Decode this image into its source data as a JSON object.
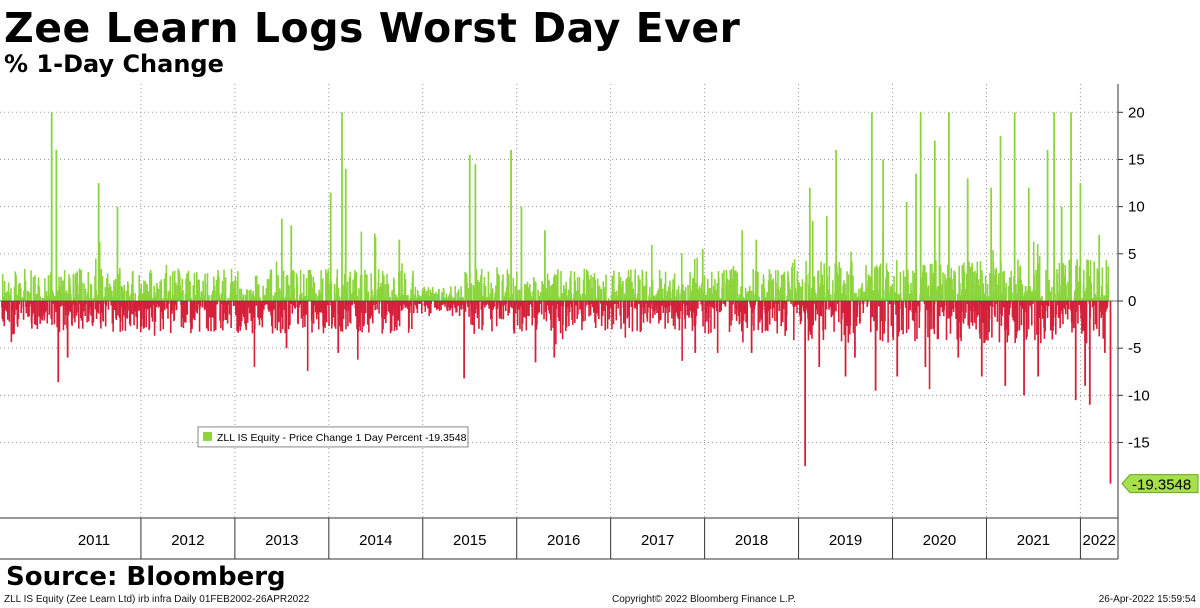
{
  "title": "Zee Learn Logs Worst Day Ever",
  "subtitle": "% 1-Day Change",
  "source": "Source: Bloomberg",
  "footer": {
    "left": "ZLL IS Equity (Zee Learn Ltd) irb infra  Daily 01FEB2002-26APR2022",
    "center": "Copyright© 2022 Bloomberg Finance L.P.",
    "right": "26-Apr-2022 15:59:54"
  },
  "colors": {
    "up": "#8cd43c",
    "down": "#d5203a",
    "label_bg": "#a7e04a"
  },
  "chart_data": {
    "type": "bar",
    "series_name": "ZLL IS Equity - Price Change 1 Day Percent",
    "legend_text": "ZLL IS Equity - Price Change 1 Day Percent -19.3548",
    "last_value": -19.3548,
    "last_value_label": "-19.3548",
    "ylim": [
      -23,
      23
    ],
    "yticks": [
      20,
      15,
      10,
      5,
      0,
      -5,
      -10,
      -15
    ],
    "ytick_labels": [
      "20",
      "15",
      "10",
      "5",
      "0",
      "-5",
      "-10",
      "-15"
    ],
    "x_range": [
      2010.5,
      2022.4
    ],
    "years": [
      2011,
      2012,
      2013,
      2014,
      2015,
      2016,
      2017,
      2018,
      2019,
      2020,
      2021,
      2022
    ],
    "year_labels": [
      "2011",
      "2012",
      "2013",
      "2014",
      "2015",
      "2016",
      "2017",
      "2018",
      "2019",
      "2020",
      "2021",
      "2022"
    ],
    "notable_moves": [
      {
        "t": 2011.05,
        "v": 20
      },
      {
        "t": 2011.1,
        "v": 16
      },
      {
        "t": 2011.12,
        "v": -8.6
      },
      {
        "t": 2011.55,
        "v": 12.5
      },
      {
        "t": 2011.75,
        "v": 10
      },
      {
        "t": 2011.22,
        "v": -6
      },
      {
        "t": 2013.5,
        "v": 8.7
      },
      {
        "t": 2013.6,
        "v": 8
      },
      {
        "t": 2013.55,
        "v": -5
      },
      {
        "t": 2014.02,
        "v": 11.5
      },
      {
        "t": 2014.14,
        "v": 20
      },
      {
        "t": 2014.18,
        "v": 14
      },
      {
        "t": 2014.1,
        "v": -5.5
      },
      {
        "t": 2014.75,
        "v": 6.5
      },
      {
        "t": 2015.44,
        "v": -8.2
      },
      {
        "t": 2015.5,
        "v": 15.5
      },
      {
        "t": 2015.56,
        "v": 14.5
      },
      {
        "t": 2015.94,
        "v": 16
      },
      {
        "t": 2016.05,
        "v": 10
      },
      {
        "t": 2016.2,
        "v": -6.5
      },
      {
        "t": 2016.3,
        "v": 7.5
      },
      {
        "t": 2016.4,
        "v": -6
      },
      {
        "t": 2017.9,
        "v": -5.5
      },
      {
        "t": 2017.98,
        "v": 5.5
      },
      {
        "t": 2018.4,
        "v": 7.5
      },
      {
        "t": 2018.5,
        "v": -5.5
      },
      {
        "t": 2018.55,
        "v": 6.5
      },
      {
        "t": 2019.07,
        "v": -17.5
      },
      {
        "t": 2019.12,
        "v": 12
      },
      {
        "t": 2019.22,
        "v": -7
      },
      {
        "t": 2019.3,
        "v": 9
      },
      {
        "t": 2019.4,
        "v": 16
      },
      {
        "t": 2019.5,
        "v": -8
      },
      {
        "t": 2019.6,
        "v": -6
      },
      {
        "t": 2019.78,
        "v": 20
      },
      {
        "t": 2019.82,
        "v": -9.5
      },
      {
        "t": 2019.9,
        "v": 15
      },
      {
        "t": 2020.05,
        "v": -8
      },
      {
        "t": 2020.15,
        "v": 10.5
      },
      {
        "t": 2020.25,
        "v": 13.5
      },
      {
        "t": 2020.3,
        "v": 20
      },
      {
        "t": 2020.35,
        "v": -7
      },
      {
        "t": 2020.45,
        "v": 17
      },
      {
        "t": 2020.5,
        "v": 10
      },
      {
        "t": 2020.6,
        "v": 20
      },
      {
        "t": 2020.7,
        "v": -6
      },
      {
        "t": 2020.8,
        "v": 13
      },
      {
        "t": 2020.95,
        "v": -8
      },
      {
        "t": 2021.05,
        "v": 12
      },
      {
        "t": 2021.15,
        "v": 17.5
      },
      {
        "t": 2021.2,
        "v": -9
      },
      {
        "t": 2021.3,
        "v": 20
      },
      {
        "t": 2021.4,
        "v": -10
      },
      {
        "t": 2021.45,
        "v": 12
      },
      {
        "t": 2021.55,
        "v": -8
      },
      {
        "t": 2021.65,
        "v": 16
      },
      {
        "t": 2021.72,
        "v": 20
      },
      {
        "t": 2021.8,
        "v": 10
      },
      {
        "t": 2021.9,
        "v": 20
      },
      {
        "t": 2021.95,
        "v": -10.5
      },
      {
        "t": 2022.0,
        "v": 12.5
      },
      {
        "t": 2022.05,
        "v": -9
      },
      {
        "t": 2022.1,
        "v": -11
      },
      {
        "t": 2022.2,
        "v": 7
      },
      {
        "t": 2022.26,
        "v": -5.5
      },
      {
        "t": 2022.32,
        "v": -19.3548
      }
    ]
  }
}
